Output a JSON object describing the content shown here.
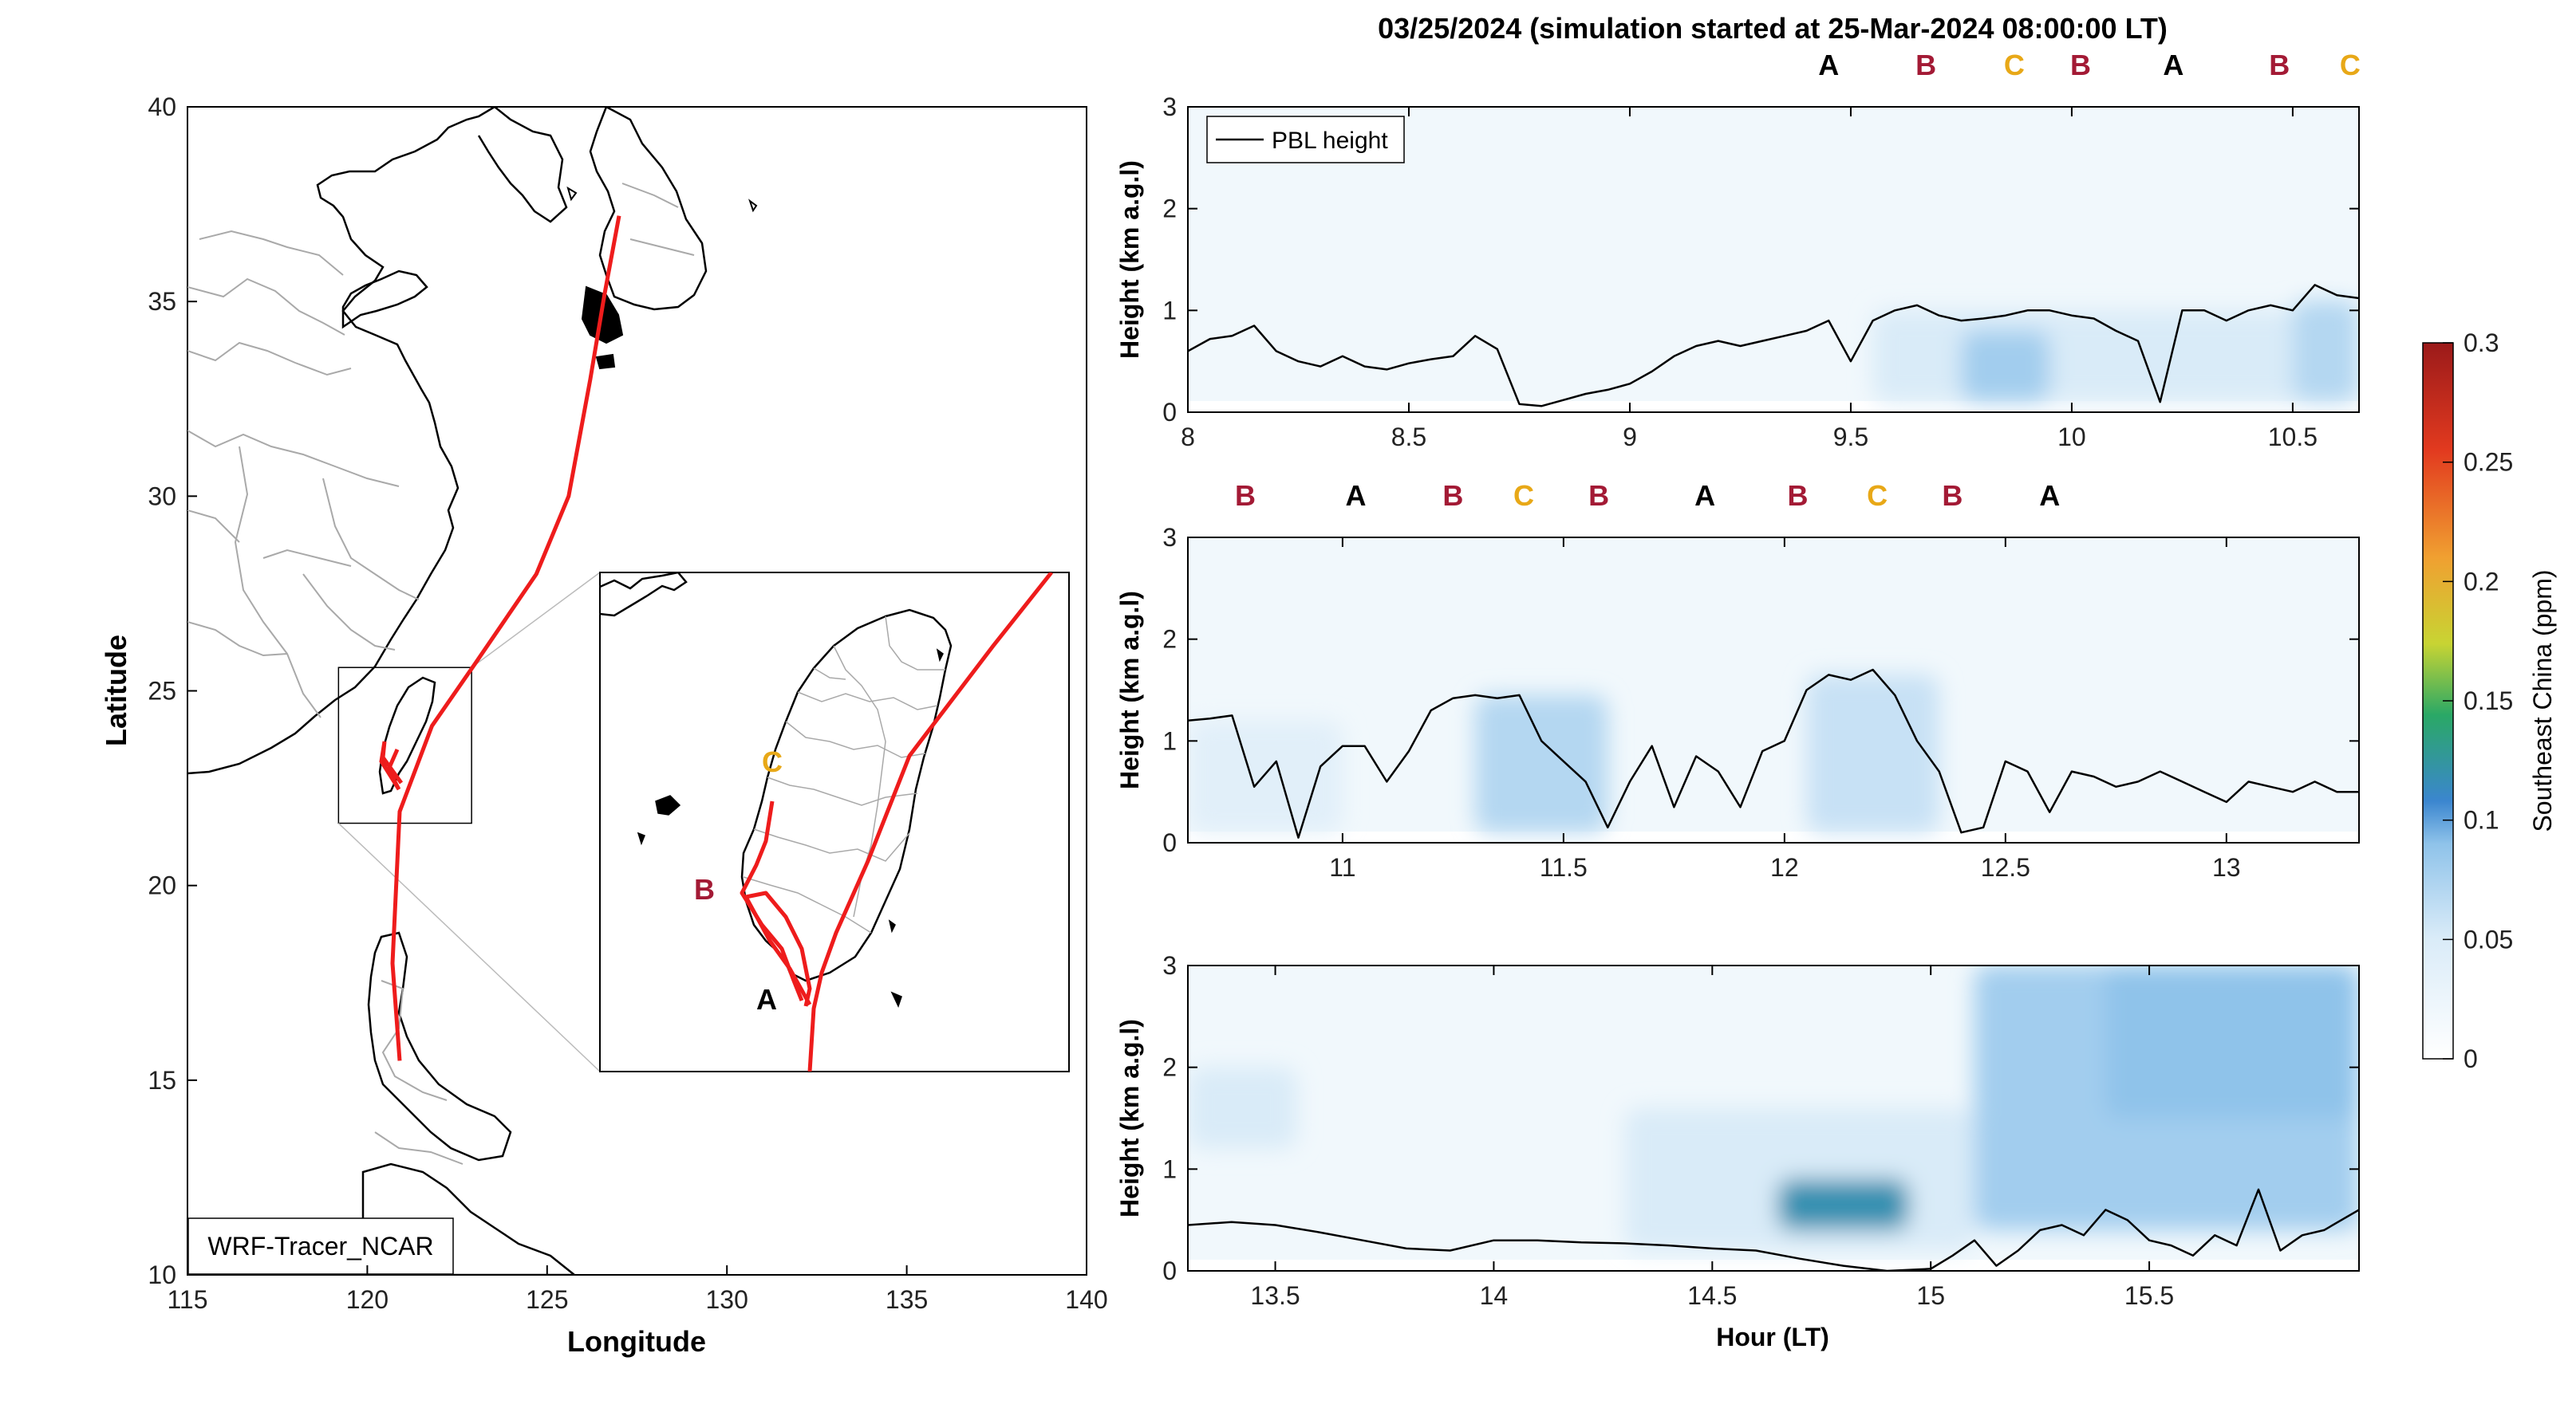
{
  "figure": {
    "title": "03/25/2024 (simulation started at 25-Mar-2024 08:00:00 LT)",
    "colors": {
      "track": "#ee1c1c",
      "label_A": "#000000",
      "label_B": "#a31a35",
      "label_C": "#e8a817",
      "coast": "#000000",
      "borders": "#a9a9a9"
    }
  },
  "map": {
    "xlabel": "Longitude",
    "ylabel": "Latitude",
    "xlim": [
      115,
      140
    ],
    "ylim": [
      10,
      40
    ],
    "xticks": [
      "115",
      "120",
      "125",
      "130",
      "135",
      "140"
    ],
    "yticks": [
      "10",
      "15",
      "20",
      "25",
      "30",
      "35",
      "40"
    ],
    "model_label": "WRF-Tracer_NCAR",
    "inset_box_lonlat": [
      [
        119.2,
        21.6
      ],
      [
        122.9,
        25.6
      ]
    ],
    "track_lonlat": [
      [
        120.9,
        15.5
      ],
      [
        120.7,
        18
      ],
      [
        120.9,
        21.9
      ],
      [
        121.8,
        24.1
      ],
      [
        123.0,
        25.7
      ],
      [
        124.7,
        28.0
      ],
      [
        125.6,
        30.0
      ],
      [
        126.2,
        33.0
      ],
      [
        126.6,
        35.2
      ],
      [
        127.0,
        37.2
      ]
    ],
    "inset_labels": [
      "A",
      "B",
      "C"
    ],
    "tick_values_lon": [
      115,
      120,
      125,
      130,
      135,
      140
    ],
    "tick_values_lat": [
      10,
      15,
      20,
      25,
      30,
      35,
      40
    ]
  },
  "chart_data": [
    {
      "type": "heatmap",
      "panel": "top",
      "ylabel": "Height (km a.g.l)",
      "xlim": [
        8.0,
        10.65
      ],
      "ylim": [
        0,
        3
      ],
      "xticks": [
        "8",
        "8.5",
        "9",
        "9.5",
        "10",
        "10.5"
      ],
      "yticks": [
        "0",
        "1",
        "2",
        "3"
      ],
      "legend": "PBL height",
      "legend_position": "top-left",
      "site_labels": [
        {
          "t": 9.45,
          "label": "A"
        },
        {
          "t": 9.67,
          "label": "B"
        },
        {
          "t": 9.87,
          "label": "C"
        },
        {
          "t": 10.02,
          "label": "B"
        },
        {
          "t": 10.23,
          "label": "A"
        },
        {
          "t": 10.47,
          "label": "B"
        },
        {
          "t": 10.63,
          "label": "C"
        }
      ],
      "pbl_height_km": {
        "t": [
          8.0,
          8.05,
          8.1,
          8.15,
          8.2,
          8.25,
          8.3,
          8.35,
          8.4,
          8.45,
          8.5,
          8.55,
          8.6,
          8.65,
          8.7,
          8.75,
          8.8,
          8.85,
          8.9,
          8.95,
          9.0,
          9.05,
          9.1,
          9.15,
          9.2,
          9.25,
          9.3,
          9.35,
          9.4,
          9.45,
          9.5,
          9.55,
          9.6,
          9.65,
          9.7,
          9.75,
          9.8,
          9.85,
          9.9,
          9.95,
          10.0,
          10.05,
          10.1,
          10.15,
          10.2,
          10.25,
          10.3,
          10.35,
          10.4,
          10.45,
          10.5,
          10.55,
          10.6,
          10.65
        ],
        "v": [
          0.6,
          0.72,
          0.75,
          0.85,
          0.6,
          0.5,
          0.45,
          0.55,
          0.45,
          0.42,
          0.48,
          0.52,
          0.55,
          0.75,
          0.62,
          0.08,
          0.06,
          0.12,
          0.18,
          0.22,
          0.28,
          0.4,
          0.55,
          0.65,
          0.7,
          0.65,
          0.7,
          0.75,
          0.8,
          0.9,
          0.5,
          0.9,
          1.0,
          1.05,
          0.95,
          0.9,
          0.92,
          0.95,
          1.0,
          1.0,
          0.95,
          0.92,
          0.8,
          0.7,
          0.1,
          1.0,
          1.0,
          0.9,
          1.0,
          1.05,
          1.0,
          1.25,
          1.15,
          1.12
        ]
      },
      "tracer_blobs": [
        {
          "t0": 9.55,
          "t1": 10.65,
          "z0": 0.1,
          "z1": 1.0,
          "level": 0.05
        },
        {
          "t0": 9.75,
          "t1": 9.95,
          "z0": 0.1,
          "z1": 0.8,
          "level": 0.08
        },
        {
          "t0": 10.5,
          "t1": 10.65,
          "z0": 0.1,
          "z1": 1.1,
          "level": 0.07
        }
      ]
    },
    {
      "type": "heatmap",
      "panel": "middle",
      "ylabel": "Height (km a.g.l)",
      "xlim": [
        10.65,
        13.3
      ],
      "ylim": [
        0,
        3
      ],
      "xticks": [
        "11",
        "11.5",
        "12",
        "12.5",
        "13"
      ],
      "yticks": [
        "0",
        "1",
        "2",
        "3"
      ],
      "site_labels": [
        {
          "t": 10.78,
          "label": "B"
        },
        {
          "t": 11.03,
          "label": "A"
        },
        {
          "t": 11.25,
          "label": "B"
        },
        {
          "t": 11.41,
          "label": "C"
        },
        {
          "t": 11.58,
          "label": "B"
        },
        {
          "t": 11.82,
          "label": "A"
        },
        {
          "t": 12.03,
          "label": "B"
        },
        {
          "t": 12.21,
          "label": "C"
        },
        {
          "t": 12.38,
          "label": "B"
        },
        {
          "t": 12.6,
          "label": "A"
        }
      ],
      "pbl_height_km": {
        "t": [
          10.65,
          10.7,
          10.75,
          10.8,
          10.85,
          10.9,
          10.95,
          11.0,
          11.05,
          11.1,
          11.15,
          11.2,
          11.25,
          11.3,
          11.35,
          11.4,
          11.45,
          11.5,
          11.55,
          11.6,
          11.65,
          11.7,
          11.75,
          11.8,
          11.85,
          11.9,
          11.95,
          12.0,
          12.05,
          12.1,
          12.15,
          12.2,
          12.25,
          12.3,
          12.35,
          12.4,
          12.45,
          12.5,
          12.55,
          12.6,
          12.65,
          12.7,
          12.75,
          12.8,
          12.85,
          12.9,
          12.95,
          13.0,
          13.05,
          13.1,
          13.15,
          13.2,
          13.25,
          13.3
        ],
        "v": [
          1.2,
          1.22,
          1.25,
          0.55,
          0.8,
          0.05,
          0.75,
          0.95,
          0.95,
          0.6,
          0.9,
          1.3,
          1.42,
          1.45,
          1.42,
          1.45,
          1.0,
          0.8,
          0.6,
          0.15,
          0.6,
          0.95,
          0.35,
          0.85,
          0.7,
          0.35,
          0.9,
          1.0,
          1.5,
          1.65,
          1.6,
          1.7,
          1.45,
          1.0,
          0.7,
          0.1,
          0.15,
          0.8,
          0.7,
          0.3,
          0.7,
          0.65,
          0.55,
          0.6,
          0.7,
          0.6,
          0.5,
          0.4,
          0.6,
          0.55,
          0.5,
          0.6,
          0.5,
          0.5
        ]
      },
      "tracer_blobs": [
        {
          "t0": 10.65,
          "t1": 11.0,
          "z0": 0.1,
          "z1": 1.2,
          "level": 0.04
        },
        {
          "t0": 11.3,
          "t1": 11.6,
          "z0": 0.1,
          "z1": 1.45,
          "level": 0.07
        },
        {
          "t0": 12.05,
          "t1": 12.35,
          "z0": 0.1,
          "z1": 1.65,
          "level": 0.06
        }
      ]
    },
    {
      "type": "heatmap",
      "panel": "bottom",
      "ylabel": "Height (km a.g.l)",
      "xlabel": "Hour (LT)",
      "xlim": [
        13.3,
        15.98
      ],
      "ylim": [
        0,
        3
      ],
      "xticks": [
        "13.5",
        "14",
        "14.5",
        "15",
        "15.5"
      ],
      "yticks": [
        "0",
        "1",
        "2",
        "3"
      ],
      "pbl_height_km": {
        "t": [
          13.3,
          13.4,
          13.5,
          13.6,
          13.7,
          13.8,
          13.9,
          14.0,
          14.1,
          14.2,
          14.3,
          14.4,
          14.5,
          14.6,
          14.7,
          14.8,
          14.9,
          15.0,
          15.05,
          15.1,
          15.15,
          15.2,
          15.25,
          15.3,
          15.35,
          15.4,
          15.45,
          15.5,
          15.55,
          15.6,
          15.65,
          15.7,
          15.75,
          15.8,
          15.85,
          15.9,
          15.98
        ],
        "v": [
          0.45,
          0.48,
          0.45,
          0.38,
          0.3,
          0.22,
          0.2,
          0.3,
          0.3,
          0.28,
          0.27,
          0.25,
          0.22,
          0.2,
          0.12,
          0.05,
          0.0,
          0.02,
          0.15,
          0.3,
          0.05,
          0.2,
          0.4,
          0.45,
          0.35,
          0.6,
          0.5,
          0.3,
          0.25,
          0.15,
          0.35,
          0.25,
          0.8,
          0.2,
          0.35,
          0.4,
          0.6
        ]
      },
      "tracer_blobs": [
        {
          "t0": 13.3,
          "t1": 13.55,
          "z0": 1.2,
          "z1": 2.0,
          "level": 0.05
        },
        {
          "t0": 14.3,
          "t1": 15.1,
          "z0": 0.2,
          "z1": 1.6,
          "level": 0.05
        },
        {
          "t0": 14.65,
          "t1": 14.95,
          "z0": 0.4,
          "z1": 0.9,
          "level": 0.12
        },
        {
          "t0": 15.1,
          "t1": 15.98,
          "z0": 0.4,
          "z1": 3.0,
          "level": 0.08
        },
        {
          "t0": 15.4,
          "t1": 15.98,
          "z0": 1.5,
          "z1": 3.0,
          "level": 0.09
        }
      ]
    }
  ],
  "colorbar": {
    "label": "Southeast China (ppm)",
    "ticks": [
      "0",
      "0.05",
      "0.1",
      "0.15",
      "0.2",
      "0.25",
      "0.3"
    ],
    "range": [
      0,
      0.3
    ],
    "colors": [
      "#ffffff",
      "#d9ebf8",
      "#8fc3ea",
      "#3b86cf",
      "#2aa866",
      "#c8d433",
      "#f0a031",
      "#e23a1f",
      "#9b1a1a"
    ]
  }
}
